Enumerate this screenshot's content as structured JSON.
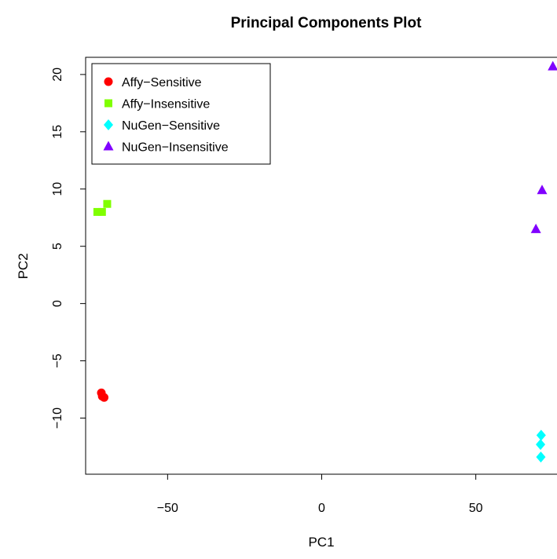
{
  "chart_data": {
    "type": "scatter",
    "title": "Principal Components Plot",
    "xlabel": "PC1",
    "ylabel": "PC2",
    "xlim": [
      -76.6,
      76.6
    ],
    "ylim": [
      -14.9,
      21.5
    ],
    "xticks": [
      -50,
      0,
      50
    ],
    "yticks": [
      -10,
      -5,
      0,
      5,
      10,
      15,
      20
    ],
    "xtick_labels": [
      "−50",
      "0",
      "50"
    ],
    "ytick_labels": [
      "−10",
      "−5",
      "0",
      "5",
      "10",
      "15",
      "20"
    ],
    "grid": false,
    "legend_position": "top-left",
    "series": [
      {
        "name": "Affy−Sensitive",
        "marker": "circle",
        "color": "#ff0000",
        "points": [
          [
            -71.5,
            -7.8
          ],
          [
            -71.2,
            -8.1
          ],
          [
            -70.6,
            -8.2
          ]
        ]
      },
      {
        "name": "Affy−Insensitive",
        "marker": "square",
        "color": "#80ff00",
        "points": [
          [
            -72.8,
            8.0
          ],
          [
            -71.3,
            8.0
          ],
          [
            -69.6,
            8.7
          ]
        ]
      },
      {
        "name": "NuGen−Sensitive",
        "marker": "diamond",
        "color": "#00ffff",
        "points": [
          [
            71.2,
            -11.5
          ],
          [
            71.0,
            -12.3
          ],
          [
            71.1,
            -13.4
          ]
        ]
      },
      {
        "name": "NuGen−Insensitive",
        "marker": "triangle",
        "color": "#8000ff",
        "points": [
          [
            69.5,
            6.5
          ],
          [
            71.5,
            9.9
          ],
          [
            75.0,
            20.7
          ]
        ]
      }
    ]
  }
}
